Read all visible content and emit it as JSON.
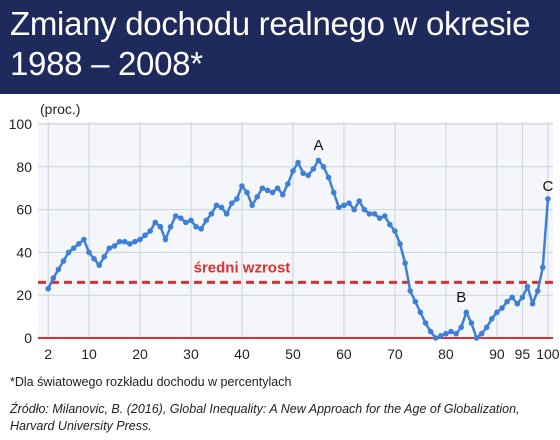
{
  "header": {
    "title_line1": "Zmiany dochodu realnego w okresie",
    "title_line2": "1988 – 2008*"
  },
  "footnote": "*Dla światowego rozkładu dochodu w percentylach",
  "source_line1": "Źródło: Milanovic, B. (2016), Global Inequality: A New Approach for the Age of Globalization,",
  "source_line2": "Harvard University Press.",
  "colors": {
    "header_bg": "#1f2a5c",
    "line": "#3d7fd9",
    "average_line": "#d93333",
    "zero_line": "#d93333",
    "grid": "#c9d3df"
  },
  "chart_data": {
    "type": "line",
    "title": "",
    "ylabel": "(proc.)",
    "xlabel": "",
    "xlim": [
      0,
      101
    ],
    "ylim": [
      0,
      100
    ],
    "x_ticks": [
      2,
      10,
      20,
      30,
      40,
      50,
      60,
      70,
      80,
      90,
      95,
      100
    ],
    "y_ticks": [
      0,
      20,
      40,
      60,
      80,
      100
    ],
    "grid": true,
    "average_label": "średni wzrost",
    "average_value": 26,
    "annotations": [
      {
        "label": "A",
        "x": 55,
        "y": 84
      },
      {
        "label": "B",
        "x": 83,
        "y": 13
      },
      {
        "label": "C",
        "x": 100,
        "y": 65
      }
    ],
    "series": [
      {
        "x": [
          2,
          3,
          4,
          5,
          6,
          7,
          8,
          9,
          10,
          11,
          12,
          13,
          14,
          15,
          16,
          17,
          18,
          19,
          20,
          21,
          22,
          23,
          24,
          25,
          26,
          27,
          28,
          29,
          30,
          31,
          32,
          33,
          34,
          35,
          36,
          37,
          38,
          39,
          40,
          41,
          42,
          43,
          44,
          45,
          46,
          47,
          48,
          49,
          50,
          51,
          52,
          53,
          54,
          55,
          56,
          57,
          58,
          59,
          60,
          61,
          62,
          63,
          64,
          65,
          66,
          67,
          68,
          69,
          70,
          71,
          72,
          73,
          74,
          75,
          76,
          77,
          78,
          79,
          80,
          81,
          82,
          83,
          84,
          85,
          86,
          87,
          88,
          89,
          90,
          91,
          92,
          93,
          94,
          95,
          96,
          97,
          98,
          99,
          100
        ],
        "values": [
          23,
          28,
          32,
          36,
          40,
          42,
          44,
          46,
          40,
          37,
          34,
          38,
          42,
          43,
          45,
          45,
          44,
          45,
          46,
          48,
          50,
          54,
          52,
          46,
          52,
          57,
          56,
          54,
          55,
          52,
          51,
          55,
          58,
          62,
          61,
          58,
          63,
          65,
          71,
          68,
          62,
          66,
          70,
          69,
          68,
          70,
          67,
          72,
          78,
          82,
          77,
          76,
          79,
          83,
          80,
          75,
          68,
          61,
          62,
          63,
          60,
          64,
          60,
          58,
          58,
          56,
          57,
          53,
          50,
          44,
          35,
          22,
          17,
          12,
          7,
          3,
          0,
          1,
          2,
          3,
          2,
          5,
          12,
          7,
          0,
          2,
          5,
          9,
          12,
          14,
          17,
          19,
          16,
          19,
          24,
          16,
          22,
          33,
          65
        ]
      }
    ]
  }
}
